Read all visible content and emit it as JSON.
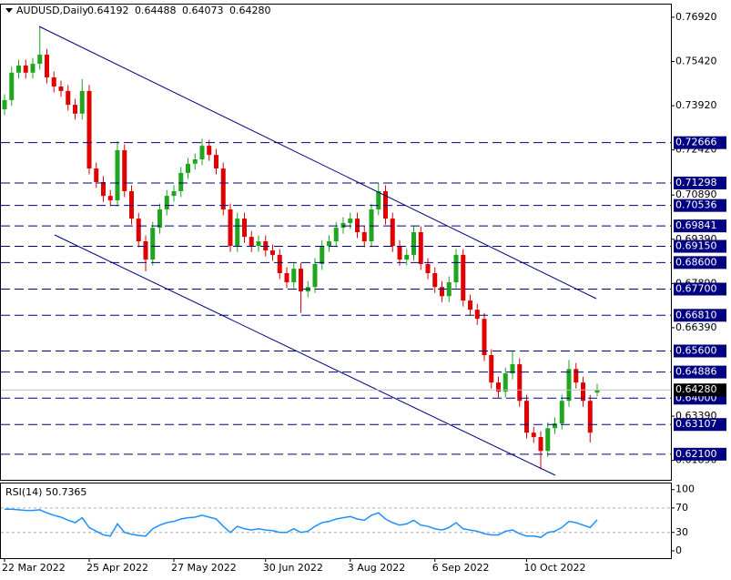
{
  "chart_data": [
    {
      "type": "candlestick",
      "title": "AUDUSD,Daily",
      "header_labels": [
        "0.64192",
        "0.64488",
        "0.64073",
        "0.64280"
      ],
      "categories": [
        "22 Mar 2022",
        null,
        null,
        null,
        null,
        null,
        null,
        null,
        null,
        null,
        null,
        null,
        "25 Apr 2022",
        null,
        null,
        null,
        null,
        null,
        null,
        null,
        null,
        null,
        null,
        null,
        "27 May 2022",
        null,
        null,
        null,
        null,
        null,
        null,
        null,
        null,
        null,
        null,
        null,
        null,
        "30 Jun 2022",
        null,
        null,
        null,
        null,
        null,
        null,
        null,
        null,
        null,
        null,
        null,
        "3 Aug 2022",
        null,
        null,
        null,
        null,
        null,
        null,
        null,
        null,
        null,
        null,
        null,
        "6 Sep 2022",
        null,
        null,
        null,
        null,
        null,
        null,
        null,
        null,
        null,
        null,
        null,
        null,
        "10 Oct 2022",
        null,
        null,
        null,
        null,
        null,
        null,
        null,
        null,
        null,
        null
      ],
      "open": [
        0.738,
        0.7411,
        0.7504,
        0.7528,
        0.7504,
        0.7534,
        0.7565,
        0.7488,
        0.7457,
        0.7442,
        0.7395,
        0.7365,
        0.7442,
        0.7179,
        0.7133,
        0.7086,
        0.7071,
        0.7241,
        0.7102,
        0.7009,
        0.6932,
        0.687,
        0.6978,
        0.704,
        0.7086,
        0.7102,
        0.7164,
        0.7195,
        0.721,
        0.7256,
        0.7225,
        0.7179,
        0.704,
        0.6916,
        0.7009,
        0.6947,
        0.6916,
        0.6932,
        0.6901,
        0.6886,
        0.6824,
        0.6793,
        0.6839,
        0.6762,
        0.6777,
        0.6855,
        0.6916,
        0.6932,
        0.6978,
        0.6994,
        0.7009,
        0.6963,
        0.6932,
        0.704,
        0.7102,
        0.7009,
        0.6916,
        0.687,
        0.6886,
        0.6963,
        0.6855,
        0.6824,
        0.6777,
        0.6746,
        0.6793,
        0.6886,
        0.6731,
        0.67,
        0.6669,
        0.6546,
        0.6453,
        0.6422,
        0.6484,
        0.6515,
        0.6391,
        0.6283,
        0.6268,
        0.6221,
        0.6298,
        0.6314,
        0.6391,
        0.6499,
        0.6453,
        0.6391,
        0.64192
      ],
      "high": [
        0.7431,
        0.7524,
        0.7548,
        0.7548,
        0.7554,
        0.7661,
        0.7585,
        0.7508,
        0.7477,
        0.7462,
        0.7415,
        0.7482,
        0.7462,
        0.7199,
        0.7153,
        0.7106,
        0.7271,
        0.7261,
        0.7122,
        0.7029,
        0.6952,
        0.6998,
        0.706,
        0.7106,
        0.7122,
        0.7184,
        0.7215,
        0.723,
        0.728,
        0.7276,
        0.7245,
        0.7199,
        0.706,
        0.7029,
        0.7029,
        0.6967,
        0.6952,
        0.6952,
        0.6921,
        0.6906,
        0.6844,
        0.6859,
        0.6859,
        0.6797,
        0.6875,
        0.6936,
        0.6952,
        0.6998,
        0.7014,
        0.7029,
        0.7029,
        0.6983,
        0.706,
        0.713,
        0.7122,
        0.7029,
        0.6936,
        0.6906,
        0.6983,
        0.6983,
        0.6875,
        0.6844,
        0.6797,
        0.6813,
        0.6906,
        0.6906,
        0.6751,
        0.672,
        0.6689,
        0.6566,
        0.6473,
        0.6504,
        0.656,
        0.6535,
        0.6411,
        0.6303,
        0.6288,
        0.6318,
        0.6334,
        0.6411,
        0.653,
        0.6519,
        0.6473,
        0.6411,
        0.64488
      ],
      "low": [
        0.736,
        0.7391,
        0.7484,
        0.7484,
        0.7484,
        0.7514,
        0.7468,
        0.7437,
        0.7422,
        0.7375,
        0.7345,
        0.7345,
        0.7159,
        0.7113,
        0.7066,
        0.7051,
        0.7051,
        0.7082,
        0.6989,
        0.6912,
        0.683,
        0.685,
        0.6958,
        0.702,
        0.7066,
        0.7082,
        0.7144,
        0.7175,
        0.719,
        0.7205,
        0.7159,
        0.702,
        0.6896,
        0.6896,
        0.6927,
        0.6896,
        0.6896,
        0.6881,
        0.6866,
        0.6804,
        0.6773,
        0.6773,
        0.669,
        0.6742,
        0.6757,
        0.6835,
        0.6896,
        0.6912,
        0.6958,
        0.6974,
        0.6943,
        0.6912,
        0.6912,
        0.702,
        0.6989,
        0.6896,
        0.685,
        0.685,
        0.6866,
        0.6835,
        0.6804,
        0.6757,
        0.6726,
        0.6726,
        0.6773,
        0.6711,
        0.668,
        0.6649,
        0.6526,
        0.6433,
        0.6402,
        0.6402,
        0.6464,
        0.6371,
        0.6263,
        0.6248,
        0.6159,
        0.6201,
        0.6278,
        0.6294,
        0.6371,
        0.6433,
        0.6371,
        0.625,
        0.64073
      ],
      "close": [
        0.7411,
        0.7504,
        0.7528,
        0.7504,
        0.7534,
        0.7565,
        0.7488,
        0.7457,
        0.7442,
        0.7395,
        0.7365,
        0.7442,
        0.7179,
        0.7133,
        0.7086,
        0.7071,
        0.7241,
        0.7102,
        0.7009,
        0.6932,
        0.687,
        0.6978,
        0.704,
        0.7086,
        0.7102,
        0.7164,
        0.7195,
        0.721,
        0.7256,
        0.7225,
        0.7179,
        0.704,
        0.6916,
        0.7009,
        0.6947,
        0.6916,
        0.6932,
        0.6901,
        0.6886,
        0.6824,
        0.6793,
        0.6839,
        0.6762,
        0.6777,
        0.6855,
        0.6916,
        0.6932,
        0.6978,
        0.6994,
        0.7009,
        0.6963,
        0.6932,
        0.704,
        0.7102,
        0.7009,
        0.6916,
        0.687,
        0.6886,
        0.6963,
        0.6855,
        0.6824,
        0.6777,
        0.6746,
        0.6793,
        0.6886,
        0.6731,
        0.67,
        0.6669,
        0.6546,
        0.6453,
        0.6422,
        0.6484,
        0.6515,
        0.6391,
        0.6283,
        0.6268,
        0.6221,
        0.6298,
        0.6314,
        0.6391,
        0.6499,
        0.6453,
        0.6391,
        0.6283,
        0.6428
      ],
      "up_color": "#1fa51f",
      "down_color": "#e00000",
      "ylim": [
        0.6123,
        0.7735
      ],
      "yticks": [
        {
          "value": 0.7692,
          "label": "0.76920"
        },
        {
          "value": 0.7542,
          "label": "0.75420"
        },
        {
          "value": 0.7392,
          "label": "0.73920"
        },
        {
          "value": 0.7242,
          "label": "0.72420"
        },
        {
          "value": 0.7089,
          "label": "0.70890"
        },
        {
          "value": 0.6939,
          "label": "0.69390"
        },
        {
          "value": 0.6789,
          "label": "0.67890"
        },
        {
          "value": 0.6639,
          "label": "0.66390"
        },
        {
          "value": 0.6339,
          "label": "0.63390"
        },
        {
          "value": 0.6189,
          "label": "0.61890"
        }
      ],
      "levels": [
        {
          "value": 0.72666,
          "label": "0.72666"
        },
        {
          "value": 0.71298,
          "label": "0.71298"
        },
        {
          "value": 0.70536,
          "label": "0.70536"
        },
        {
          "value": 0.69841,
          "label": "0.69841"
        },
        {
          "value": 0.6915,
          "label": "0.69150"
        },
        {
          "value": 0.686,
          "label": "0.68600"
        },
        {
          "value": 0.677,
          "label": "0.67700"
        },
        {
          "value": 0.6681,
          "label": "0.66810"
        },
        {
          "value": 0.656,
          "label": "0.65600"
        },
        {
          "value": 0.64886,
          "label": "0.64886"
        },
        {
          "value": 0.64,
          "label": "0.64000"
        },
        {
          "value": 0.63107,
          "label": "0.63107"
        },
        {
          "value": 0.621,
          "label": "0.62100"
        }
      ],
      "level_color": "#000080",
      "current_price": {
        "value": 0.6428,
        "label": "0.64280"
      }
    },
    {
      "type": "line",
      "title": "RSI(14) 50.7365",
      "color": "#1e90ff",
      "values": [
        68,
        68,
        67,
        66,
        66,
        67,
        62,
        58,
        55,
        50,
        46,
        54,
        38,
        32,
        26,
        24,
        44,
        30,
        27,
        25,
        24,
        36,
        42,
        46,
        48,
        52,
        54,
        55,
        58,
        55,
        52,
        40,
        30,
        40,
        36,
        34,
        36,
        34,
        33,
        30,
        30,
        36,
        30,
        32,
        40,
        46,
        48,
        52,
        54,
        56,
        52,
        50,
        58,
        62,
        52,
        46,
        42,
        44,
        50,
        42,
        40,
        36,
        34,
        38,
        46,
        36,
        34,
        32,
        28,
        26,
        26,
        32,
        34,
        28,
        24,
        24,
        22,
        30,
        32,
        38,
        48,
        46,
        42,
        38,
        50.7365
      ],
      "ylim": [
        -12,
        110
      ],
      "yticks": [
        100,
        70,
        30,
        0
      ],
      "levels": [
        70,
        30
      ]
    }
  ]
}
